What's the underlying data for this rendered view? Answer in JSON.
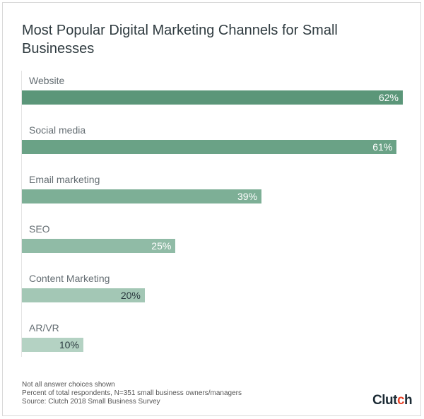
{
  "chart_data": {
    "type": "bar",
    "orientation": "horizontal",
    "title": "Most Popular Digital Marketing Channels for Small Businesses",
    "categories": [
      "Website",
      "Social media",
      "Email marketing",
      "SEO",
      "Content Marketing",
      "AR/VR"
    ],
    "values": [
      62,
      61,
      39,
      25,
      20,
      10
    ],
    "value_labels": [
      "62%",
      "61%",
      "39%",
      "25%",
      "20%",
      "10%"
    ],
    "unit": "%",
    "xlim": [
      0,
      62
    ],
    "grid": false,
    "bar_colors": [
      "#5b9679",
      "#6aa286",
      "#7daf96",
      "#90bba6",
      "#a3c7b5",
      "#b4d2c3"
    ],
    "label_colors": [
      "#ffffff",
      "#ffffff",
      "#ffffff",
      "#ffffff",
      "#2b3a40",
      "#2b3a40"
    ]
  },
  "notes": [
    "Not all answer choices shown",
    "Percent of total respondents, N=351 small business owners/managers",
    "Source: Clutch 2018 Small Business Survey"
  ],
  "logo": {
    "text": "Clutch",
    "accent": "#e8452b"
  }
}
